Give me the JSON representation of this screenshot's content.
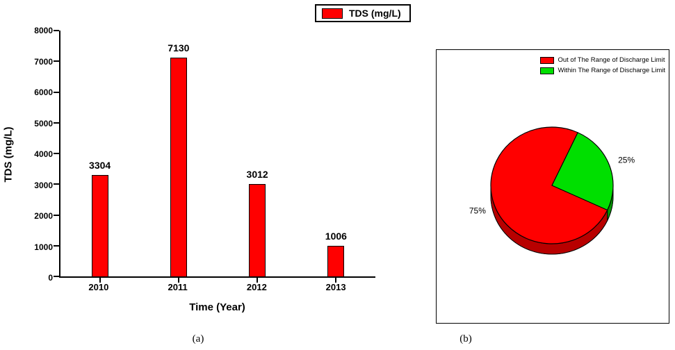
{
  "figure": {
    "caption_a": "(a)",
    "caption_b": "(b)"
  },
  "chart_data": [
    {
      "type": "bar",
      "legend": [
        "TDS (mg/L)"
      ],
      "categories": [
        "2010",
        "2011",
        "2012",
        "2013"
      ],
      "values": [
        3304,
        7130,
        3012,
        1006
      ],
      "xlabel": "Time (Year)",
      "ylabel": "TDS (mg/L)",
      "ylim": [
        0,
        8000
      ],
      "ytick_step": 1000,
      "bar_color": "#FF0000",
      "grid": false,
      "legend_position": "top-center"
    },
    {
      "type": "pie",
      "slices": [
        {
          "label": "Out of The Range of Discharge Limit",
          "pct": 75,
          "pct_label": "75%",
          "color": "#FF0000",
          "side_color": "#B80000"
        },
        {
          "label": "Within The Range of Discharge Limit",
          "pct": 25,
          "pct_label": "25%",
          "color": "#00DF00",
          "side_color": "#009900"
        }
      ],
      "start_angle_deg": 25,
      "legend_position": "top-right"
    }
  ]
}
